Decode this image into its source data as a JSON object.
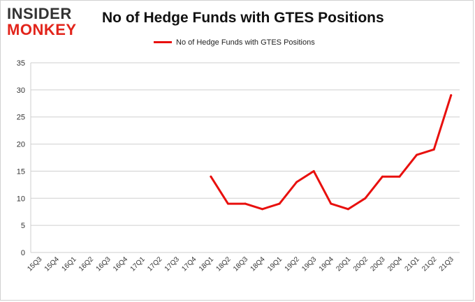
{
  "logo": {
    "line1": "INSIDER",
    "line2": "MONKEY"
  },
  "chart_data": {
    "type": "line",
    "title": "No of Hedge Funds with GTES Positions",
    "xlabel": "",
    "ylabel": "",
    "ylim": [
      0,
      35
    ],
    "yticks": [
      0,
      5,
      10,
      15,
      20,
      25,
      30,
      35
    ],
    "grid": true,
    "legend_position": "top-center",
    "categories": [
      "15Q3",
      "15Q4",
      "16Q1",
      "16Q2",
      "16Q3",
      "16Q4",
      "17Q1",
      "17Q2",
      "17Q3",
      "17Q4",
      "18Q1",
      "18Q2",
      "18Q3",
      "18Q4",
      "19Q1",
      "19Q2",
      "19Q3",
      "19Q4",
      "20Q1",
      "20Q2",
      "20Q3",
      "20Q4",
      "21Q1",
      "21Q2",
      "21Q3"
    ],
    "series": [
      {
        "name": "No of Hedge Funds with GTES  Positions",
        "color": "#e8100e",
        "values": [
          null,
          null,
          null,
          null,
          null,
          null,
          null,
          null,
          null,
          null,
          14,
          9,
          9,
          8,
          9,
          13,
          15,
          9,
          8,
          10,
          14,
          14,
          18,
          19,
          29
        ]
      }
    ]
  }
}
